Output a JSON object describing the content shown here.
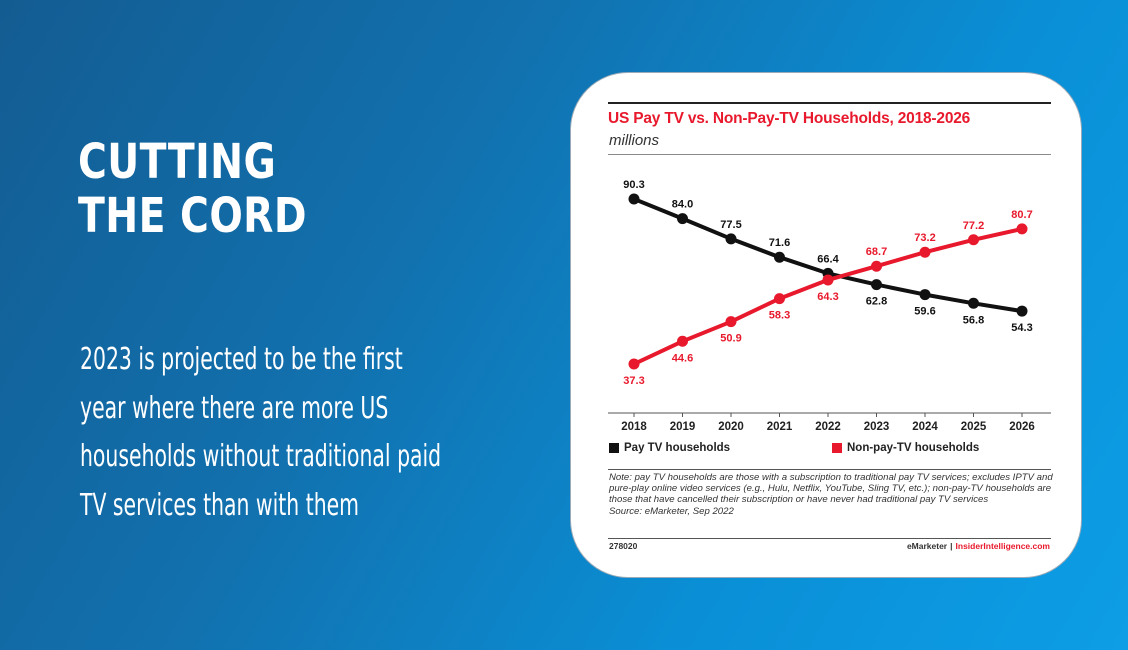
{
  "headline": {
    "line1": "CUTTING",
    "line2": "THE CORD"
  },
  "description": "2023 is projected to be the first year where there are more US households without traditional paid TV services than with them",
  "colors": {
    "pay_tv": "#111111",
    "non_pay_tv": "#e8192c",
    "title": "#e8192c"
  },
  "chart_data": {
    "type": "line",
    "title": "US Pay TV vs. Non-Pay-TV Households, 2018-2026",
    "subtitle": "millions",
    "x": [
      "2018",
      "2019",
      "2020",
      "2021",
      "2022",
      "2023",
      "2024",
      "2025",
      "2026"
    ],
    "series": [
      {
        "name": "Pay TV households",
        "color": "#111111",
        "label_color": "#111111",
        "values": [
          90.3,
          84.0,
          77.5,
          71.6,
          66.4,
          62.8,
          59.6,
          56.8,
          54.3
        ],
        "labels": [
          "90.3",
          "84.0",
          "77.5",
          "71.6",
          "66.4",
          "62.8",
          "59.6",
          "56.8",
          "54.3"
        ]
      },
      {
        "name": "Non-pay-TV households",
        "color": "#e8192c",
        "label_color": "#e8192c",
        "values": [
          37.3,
          44.6,
          50.9,
          58.3,
          64.3,
          68.7,
          73.2,
          77.2,
          80.7
        ],
        "labels": [
          "37.3",
          "44.6",
          "50.9",
          "58.3",
          "64.3",
          "68.7",
          "73.2",
          "77.2",
          "80.7"
        ]
      }
    ],
    "ylim": [
      30,
      95
    ],
    "xlabel": "",
    "ylabel": "",
    "legend": "bottom",
    "note": "Note: pay TV households are those with a subscription to traditional pay TV services; excludes IPTV and pure-play online video services (e.g., Hulu, Netflix, YouTube, Sling TV, etc.); non-pay-TV households are those that have cancelled their subscription or have never had traditional pay TV services",
    "source": "Source: eMarketer, Sep 2022",
    "chart_id": "278020",
    "brand_emarketer": "eMarketer",
    "brand_separator": "|",
    "brand_insider": "InsiderIntelligence.com"
  }
}
